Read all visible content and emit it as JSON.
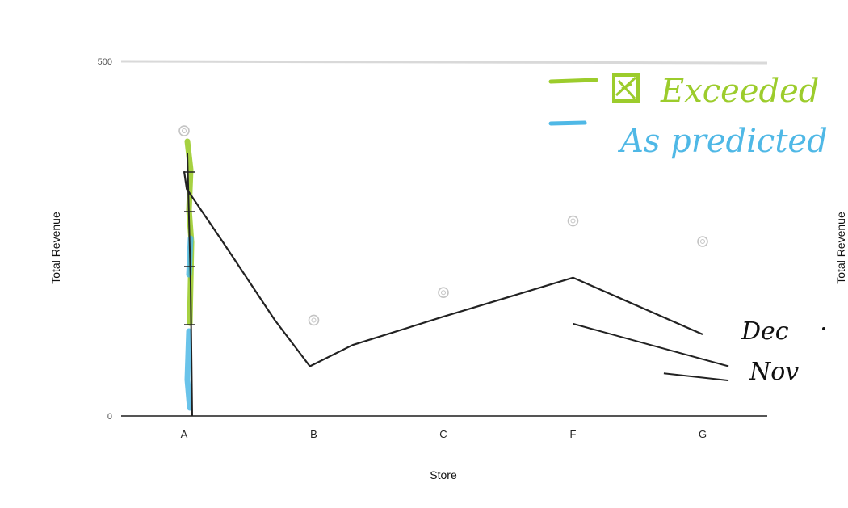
{
  "chart_data": {
    "type": "scatter",
    "categories": [
      "A",
      "B",
      "C",
      "F",
      "G"
    ],
    "xlabel": "Store",
    "ylabel": "Total Revenue",
    "ylim": [
      0,
      500
    ],
    "yticks": [
      0,
      500
    ],
    "grid": false,
    "series": [
      {
        "values": [
          402,
          135,
          174,
          275,
          246
        ]
      }
    ],
    "annotations": {
      "legend_exceeded": "Exceeded",
      "legend_predicted": "As predicted",
      "line_dec": "Dec",
      "line_nov": "Nov"
    },
    "handdrawn": {
      "dec_line": [
        [
          0,
          345
        ],
        [
          0.02,
          320
        ],
        [
          0.3,
          245
        ],
        [
          0.7,
          135
        ],
        [
          0.97,
          70
        ],
        [
          1.3,
          100
        ],
        [
          2.0,
          140
        ],
        [
          3.0,
          195
        ],
        [
          4.0,
          115
        ]
      ],
      "nov_line": [
        [
          3.0,
          130
        ],
        [
          4.2,
          70
        ]
      ],
      "stray_dash": [
        [
          3.7,
          60
        ],
        [
          4.2,
          50
        ]
      ]
    },
    "colors": {
      "point": "#c4c4c4",
      "axis": "#555555",
      "hand_line": "#222222",
      "exceeded": "#9ccc2c",
      "predicted": "#4fb8e6"
    }
  }
}
